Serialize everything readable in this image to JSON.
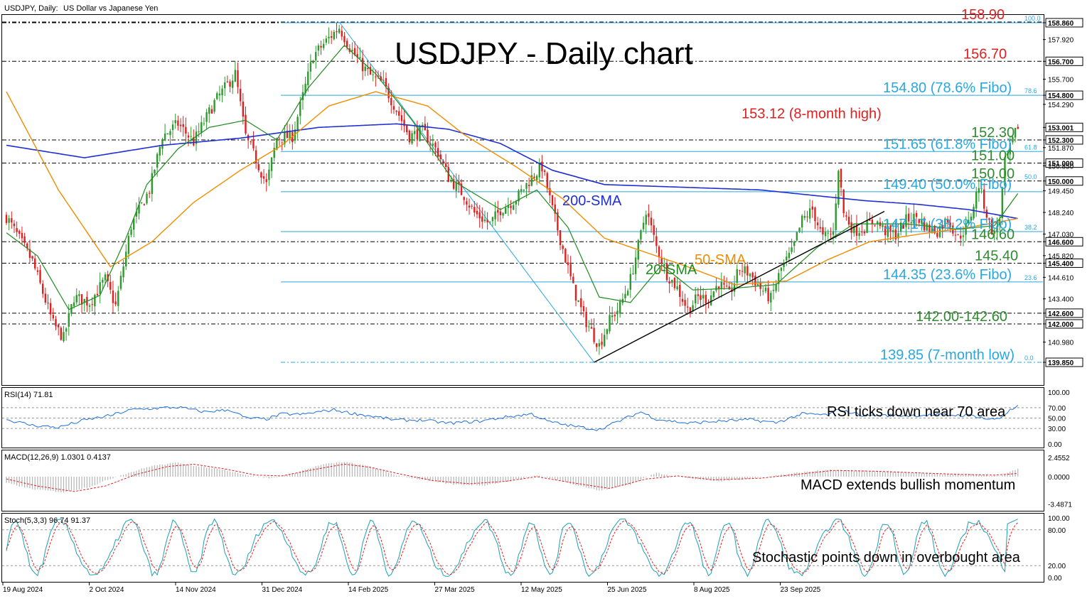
{
  "header": {
    "symbol": "USDJPY, Daily:",
    "description": "US Dollar vs Japanese Yen"
  },
  "title": "USDJPY - Daily chart",
  "chart_data": {
    "type": "line",
    "instrument": "USDJPY",
    "timeframe": "Daily",
    "ylim": [
      139.0,
      159.4
    ],
    "price_levels": [
      {
        "value": 158.9,
        "label": "158.90",
        "color": "#e02020",
        "style": "dashdot"
      },
      {
        "value": 156.7,
        "label": "156.70",
        "color": "#e02020",
        "style": "dashdot"
      },
      {
        "value": 154.8,
        "label": "154.80 (78.6% Fibo)",
        "color": "#29a7e1",
        "style": "solid",
        "fib_tag": "78.6"
      },
      {
        "value": 152.3,
        "label": "152.30",
        "color": "#2e8b2e",
        "style": "dashdot"
      },
      {
        "value": 151.65,
        "label": "151.65 (61.8% Fibo)",
        "color": "#29a7e1",
        "style": "solid",
        "fib_tag": "61.8"
      },
      {
        "value": 151.0,
        "label": "151.00",
        "color": "#2e8b2e",
        "style": "dashdot"
      },
      {
        "value": 150.0,
        "label": "150.00",
        "color": "#2e8b2e",
        "style": "dashdot",
        "fib_tag": "50.0"
      },
      {
        "value": 149.4,
        "label": "149.40 (50.0% Fibo)",
        "color": "#29a7e1",
        "style": "solid"
      },
      {
        "value": 147.17,
        "label": "147.17 (38.2% Fibo)",
        "color": "#29a7e1",
        "style": "solid",
        "fib_tag": "38.2"
      },
      {
        "value": 146.6,
        "label": "146.60",
        "color": "#2e8b2e",
        "style": "dashdot"
      },
      {
        "value": 145.4,
        "label": "145.40",
        "color": "#2e8b2e",
        "style": "dashdot"
      },
      {
        "value": 144.35,
        "label": "144.35 (23.6% Fibo)",
        "color": "#29a7e1",
        "style": "solid",
        "fib_tag": "23.6"
      },
      {
        "value": 142.6,
        "label": "",
        "color": "#2e8b2e",
        "style": "dashdot"
      },
      {
        "value": 142.0,
        "label": "142.00-142.60",
        "color": "#2e8b2e",
        "style": "dashdot"
      },
      {
        "value": 139.85,
        "label": "139.85 (7-month low)",
        "color": "#29a7e1",
        "style": "dashdot",
        "fib_tag": "0.0"
      }
    ],
    "fib_top_tag": "100.0",
    "high_annotation": {
      "value": 153.12,
      "label": "153.12  (8-month high)",
      "color": "#e02020"
    },
    "axis_ticks": [
      "158.860",
      "157.920",
      "156.700",
      "155.700",
      "154.800",
      "154.290",
      "153.001",
      "152.300",
      "151.870",
      "151.000",
      "150.850",
      "150.000",
      "149.450",
      "148.240",
      "147.030",
      "146.600",
      "145.820",
      "145.400",
      "144.610",
      "143.400",
      "142.600",
      "142.000",
      "140.980",
      "139.850"
    ],
    "highlight_ticks": [
      "158.860",
      "156.700",
      "154.800",
      "153.001",
      "152.300",
      "151.000",
      "150.000",
      "146.600",
      "145.400",
      "142.600",
      "142.000",
      "139.850"
    ],
    "x_labels": [
      "19 Aug 2024",
      "2 Oct 2024",
      "14 Nov 2024",
      "31 Dec 2024",
      "14 Feb 2025",
      "27 Mar 2025",
      "12 May 2025",
      "25 Jun 2025",
      "8 Aug 2025",
      "23 Sep 2025"
    ],
    "close_anchors": [
      [
        0,
        148.0
      ],
      [
        10,
        145.5
      ],
      [
        18,
        142.0
      ],
      [
        22,
        141.2
      ],
      [
        26,
        143.5
      ],
      [
        32,
        143.2
      ],
      [
        38,
        144.5
      ],
      [
        42,
        143.0
      ],
      [
        48,
        147.5
      ],
      [
        55,
        149.5
      ],
      [
        60,
        152.5
      ],
      [
        66,
        153.2
      ],
      [
        72,
        152.2
      ],
      [
        80,
        154.4
      ],
      [
        88,
        156.0
      ],
      [
        92,
        152.5
      ],
      [
        96,
        151.2
      ],
      [
        100,
        149.8
      ],
      [
        104,
        152.4
      ],
      [
        110,
        152.5
      ],
      [
        118,
        157.0
      ],
      [
        124,
        158.0
      ],
      [
        128,
        158.6
      ],
      [
        132,
        157.5
      ],
      [
        136,
        156.6
      ],
      [
        140,
        155.9
      ],
      [
        145,
        155.4
      ],
      [
        150,
        154.0
      ],
      [
        155,
        152.5
      ],
      [
        160,
        152.8
      ],
      [
        166,
        151.6
      ],
      [
        170,
        150.2
      ],
      [
        176,
        149.2
      ],
      [
        180,
        148.2
      ],
      [
        186,
        147.6
      ],
      [
        190,
        148.4
      ],
      [
        196,
        149.0
      ],
      [
        202,
        150.2
      ],
      [
        206,
        150.8
      ],
      [
        210,
        148.4
      ],
      [
        214,
        146.2
      ],
      [
        218,
        144.0
      ],
      [
        222,
        142.4
      ],
      [
        226,
        141.3
      ],
      [
        228,
        140.8
      ],
      [
        232,
        142.2
      ],
      [
        236,
        143.0
      ],
      [
        240,
        144.5
      ],
      [
        244,
        147.0
      ],
      [
        246,
        148.4
      ],
      [
        250,
        146.3
      ],
      [
        254,
        144.8
      ],
      [
        258,
        144.0
      ],
      [
        262,
        142.8
      ],
      [
        266,
        143.5
      ],
      [
        270,
        143.4
      ],
      [
        274,
        144.3
      ],
      [
        278,
        143.6
      ],
      [
        282,
        145.1
      ],
      [
        286,
        144.8
      ],
      [
        290,
        144.0
      ],
      [
        294,
        143.4
      ],
      [
        298,
        145.1
      ],
      [
        302,
        146.0
      ],
      [
        306,
        147.8
      ],
      [
        310,
        148.4
      ],
      [
        314,
        146.8
      ],
      [
        318,
        147.1
      ],
      [
        320,
        150.8
      ],
      [
        322,
        148.2
      ],
      [
        326,
        147.2
      ],
      [
        330,
        147.4
      ],
      [
        334,
        147.8
      ],
      [
        338,
        147.2
      ],
      [
        342,
        147.0
      ],
      [
        346,
        147.8
      ],
      [
        350,
        148.0
      ],
      [
        354,
        147.4
      ],
      [
        358,
        147.2
      ],
      [
        362,
        147.9
      ],
      [
        366,
        146.8
      ],
      [
        370,
        147.6
      ],
      [
        374,
        149.8
      ],
      [
        378,
        147.6
      ],
      [
        380,
        147.0
      ],
      [
        382,
        148.0
      ],
      [
        384,
        151.0
      ],
      [
        386,
        151.8
      ],
      [
        389,
        153.1
      ]
    ],
    "sma_20": [
      [
        0,
        147.1
      ],
      [
        12,
        145.8
      ],
      [
        24,
        142.8
      ],
      [
        36,
        143.6
      ],
      [
        46,
        146.8
      ],
      [
        54,
        149.8
      ],
      [
        66,
        151.8
      ],
      [
        78,
        153.0
      ],
      [
        92,
        153.4
      ],
      [
        104,
        152.3
      ],
      [
        116,
        155.2
      ],
      [
        130,
        157.6
      ],
      [
        142,
        156.0
      ],
      [
        156,
        153.4
      ],
      [
        172,
        150.0
      ],
      [
        190,
        148.4
      ],
      [
        204,
        149.5
      ],
      [
        216,
        147.4
      ],
      [
        228,
        143.5
      ],
      [
        240,
        143.2
      ],
      [
        252,
        145.3
      ],
      [
        264,
        143.9
      ],
      [
        280,
        144.0
      ],
      [
        296,
        144.2
      ],
      [
        312,
        146.3
      ],
      [
        326,
        147.6
      ],
      [
        346,
        147.6
      ],
      [
        366,
        147.3
      ],
      [
        380,
        147.5
      ],
      [
        389,
        149.3
      ]
    ],
    "sma_50": [
      [
        0,
        155.0
      ],
      [
        20,
        149.5
      ],
      [
        40,
        145.2
      ],
      [
        56,
        146.6
      ],
      [
        72,
        148.8
      ],
      [
        90,
        150.6
      ],
      [
        106,
        152.0
      ],
      [
        124,
        154.2
      ],
      [
        142,
        155.0
      ],
      [
        162,
        154.2
      ],
      [
        176,
        152.6
      ],
      [
        196,
        150.8
      ],
      [
        214,
        149.0
      ],
      [
        230,
        146.8
      ],
      [
        246,
        146.0
      ],
      [
        262,
        145.2
      ],
      [
        280,
        144.2
      ],
      [
        300,
        144.4
      ],
      [
        316,
        145.6
      ],
      [
        332,
        146.6
      ],
      [
        350,
        147.0
      ],
      [
        370,
        147.4
      ],
      [
        389,
        147.9
      ]
    ],
    "sma_200": [
      [
        0,
        152.0
      ],
      [
        30,
        151.3
      ],
      [
        60,
        152.0
      ],
      [
        90,
        152.4
      ],
      [
        120,
        153.0
      ],
      [
        150,
        153.2
      ],
      [
        170,
        152.9
      ],
      [
        190,
        152.1
      ],
      [
        210,
        150.6
      ],
      [
        230,
        149.8
      ],
      [
        250,
        149.7
      ],
      [
        270,
        149.6
      ],
      [
        290,
        149.5
      ],
      [
        310,
        149.2
      ],
      [
        330,
        148.9
      ],
      [
        350,
        148.7
      ],
      [
        370,
        148.4
      ],
      [
        389,
        147.9
      ]
    ],
    "labels": {
      "sma200": "200-SMA",
      "sma20": "20-SMA",
      "sma50": "50-SMA"
    },
    "colors": {
      "bull": "#2e9a2e",
      "bear": "#e02020",
      "sma20": "#1f8b1f",
      "sma50": "#f08c00",
      "sma200": "#1f2fd1",
      "fib": "#29a7e1",
      "trend": "#000000"
    },
    "trendline": {
      "from": [
        226,
        139.85
      ],
      "to": [
        396,
        148.3
      ]
    },
    "fib_swing": {
      "from": [
        128,
        158.9
      ],
      "to": [
        226,
        139.85
      ]
    }
  },
  "rsi": {
    "header": "RSI(14) 71.81",
    "ticks": [
      "100.00",
      "70.00",
      "50.00",
      "30.00",
      "0.00"
    ],
    "annotation": "RSI ticks down near 70 area",
    "anchors": [
      [
        0,
        47
      ],
      [
        10,
        36
      ],
      [
        20,
        32
      ],
      [
        30,
        46
      ],
      [
        40,
        55
      ],
      [
        48,
        66
      ],
      [
        58,
        69
      ],
      [
        66,
        71
      ],
      [
        76,
        62
      ],
      [
        86,
        66
      ],
      [
        92,
        50
      ],
      [
        100,
        48
      ],
      [
        106,
        58
      ],
      [
        114,
        57
      ],
      [
        120,
        62
      ],
      [
        126,
        66
      ],
      [
        132,
        60
      ],
      [
        140,
        54
      ],
      [
        150,
        46
      ],
      [
        160,
        46
      ],
      [
        170,
        40
      ],
      [
        182,
        44
      ],
      [
        192,
        52
      ],
      [
        202,
        58
      ],
      [
        208,
        44
      ],
      [
        216,
        36
      ],
      [
        224,
        30
      ],
      [
        228,
        28
      ],
      [
        236,
        45
      ],
      [
        244,
        62
      ],
      [
        250,
        48
      ],
      [
        262,
        40
      ],
      [
        274,
        44
      ],
      [
        286,
        47
      ],
      [
        296,
        41
      ],
      [
        306,
        58
      ],
      [
        316,
        56
      ],
      [
        320,
        66
      ],
      [
        330,
        55
      ],
      [
        346,
        55
      ],
      [
        360,
        56
      ],
      [
        372,
        55
      ],
      [
        378,
        47
      ],
      [
        382,
        50
      ],
      [
        386,
        65
      ],
      [
        389,
        72
      ]
    ]
  },
  "macd": {
    "header": "MACD(12,26,9) 1.0301 0.4137",
    "ticks": [
      "2.4552",
      "0.0000",
      "-3.4871"
    ],
    "annotation": "MACD extends bullish momentum",
    "hist_anchors": [
      [
        0,
        -0.8
      ],
      [
        10,
        -1.6
      ],
      [
        22,
        -2.0
      ],
      [
        32,
        -1.3
      ],
      [
        44,
        0.2
      ],
      [
        56,
        1.4
      ],
      [
        66,
        1.8
      ],
      [
        74,
        1.3
      ],
      [
        84,
        0.9
      ],
      [
        94,
        0.1
      ],
      [
        102,
        -0.2
      ],
      [
        110,
        0.4
      ],
      [
        122,
        1.6
      ],
      [
        130,
        1.9
      ],
      [
        140,
        1.3
      ],
      [
        150,
        0.2
      ],
      [
        160,
        -0.4
      ],
      [
        172,
        -1.0
      ],
      [
        184,
        -1.1
      ],
      [
        196,
        -0.4
      ],
      [
        204,
        0.2
      ],
      [
        214,
        -0.6
      ],
      [
        228,
        -1.8
      ],
      [
        240,
        -1.0
      ],
      [
        250,
        0.5
      ],
      [
        262,
        -0.2
      ],
      [
        274,
        -0.6
      ],
      [
        290,
        -0.1
      ],
      [
        304,
        0.5
      ],
      [
        316,
        0.9
      ],
      [
        326,
        0.8
      ],
      [
        344,
        0.6
      ],
      [
        360,
        0.3
      ],
      [
        374,
        0.3
      ],
      [
        382,
        0.0
      ],
      [
        389,
        1.03
      ]
    ],
    "signal_anchors": [
      [
        0,
        -0.3
      ],
      [
        12,
        -1.2
      ],
      [
        26,
        -1.9
      ],
      [
        38,
        -1.2
      ],
      [
        50,
        0.3
      ],
      [
        62,
        1.3
      ],
      [
        72,
        1.6
      ],
      [
        84,
        1.0
      ],
      [
        96,
        0.2
      ],
      [
        106,
        0.1
      ],
      [
        118,
        0.9
      ],
      [
        130,
        1.6
      ],
      [
        140,
        1.2
      ],
      [
        152,
        0.3
      ],
      [
        164,
        -0.5
      ],
      [
        178,
        -0.9
      ],
      [
        192,
        -0.6
      ],
      [
        204,
        0.0
      ],
      [
        218,
        -0.8
      ],
      [
        232,
        -1.5
      ],
      [
        246,
        -0.3
      ],
      [
        258,
        0.1
      ],
      [
        272,
        -0.4
      ],
      [
        290,
        -0.2
      ],
      [
        304,
        0.3
      ],
      [
        318,
        0.8
      ],
      [
        334,
        0.7
      ],
      [
        350,
        0.5
      ],
      [
        366,
        0.3
      ],
      [
        380,
        0.2
      ],
      [
        389,
        0.41
      ]
    ]
  },
  "stoch": {
    "header": "Stoch(5,3,3) 96.74 91.37",
    "ticks": [
      "100.00",
      "80.00",
      "20.00",
      "0.00"
    ],
    "annotation": "Stochastic points down in overbought area"
  }
}
